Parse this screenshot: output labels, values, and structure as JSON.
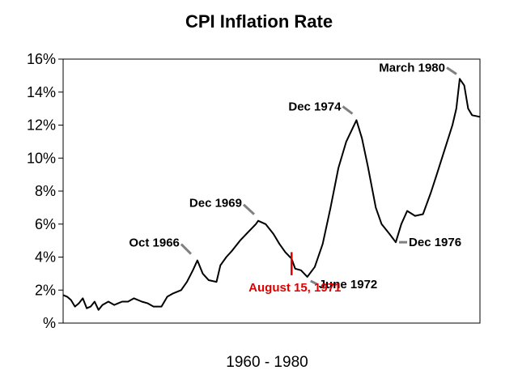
{
  "chart_data": {
    "type": "line",
    "title": "CPI Inflation Rate",
    "xlabel": "1960 - 1980",
    "ylabel": "",
    "xlim": [
      1960.0,
      1981.2
    ],
    "ylim": [
      0,
      16
    ],
    "yticks": [
      0,
      2,
      4,
      6,
      8,
      10,
      12,
      14,
      16
    ],
    "ytick_labels": [
      "%",
      "2%",
      "4%",
      "6%",
      "8%",
      "10%",
      "12%",
      "14%",
      "16%"
    ],
    "grid": false,
    "line_color": "#000000",
    "annotation_color": "#808080",
    "highlight_color": "#e00000",
    "series": [
      {
        "x": [
          1960.0,
          1960.2,
          1960.4,
          1960.6,
          1960.8,
          1961.0,
          1961.2,
          1961.4,
          1961.6,
          1961.8,
          1962.0,
          1962.3,
          1962.6,
          1963.0,
          1963.3,
          1963.6,
          1964.0,
          1964.3,
          1964.6,
          1965.0,
          1965.3,
          1965.6,
          1966.0,
          1966.3,
          1966.6,
          1966.83,
          1967.1,
          1967.4,
          1967.8,
          1968.0,
          1968.3,
          1968.6,
          1969.0,
          1969.4,
          1969.8,
          1969.92,
          1970.3,
          1970.7,
          1971.0,
          1971.3,
          1971.62,
          1971.8,
          1972.1,
          1972.42,
          1972.8,
          1973.2,
          1973.6,
          1974.0,
          1974.4,
          1974.92,
          1975.2,
          1975.5,
          1975.9,
          1976.2,
          1976.6,
          1976.92,
          1977.2,
          1977.5,
          1977.9,
          1978.3,
          1978.7,
          1979.0,
          1979.4,
          1979.8,
          1980.0,
          1980.17,
          1980.4,
          1980.6,
          1980.8,
          1981.2
        ],
        "y": [
          1.7,
          1.6,
          1.4,
          1.0,
          1.2,
          1.5,
          0.9,
          1.0,
          1.3,
          0.8,
          1.1,
          1.3,
          1.1,
          1.3,
          1.3,
          1.5,
          1.3,
          1.2,
          1.0,
          1.0,
          1.6,
          1.8,
          2.0,
          2.5,
          3.2,
          3.8,
          3.0,
          2.6,
          2.5,
          3.5,
          4.0,
          4.4,
          5.0,
          5.5,
          6.0,
          6.2,
          6.0,
          5.4,
          4.8,
          4.3,
          3.9,
          3.3,
          3.2,
          2.8,
          3.4,
          4.8,
          7.0,
          9.4,
          11.0,
          12.3,
          11.2,
          9.5,
          7.0,
          6.0,
          5.4,
          4.9,
          6.0,
          6.8,
          6.5,
          6.6,
          7.9,
          9.0,
          10.5,
          12.0,
          13.0,
          14.8,
          14.4,
          13.0,
          12.6,
          12.5
        ]
      }
    ],
    "annotations": [
      {
        "text": "Oct 1966",
        "x": 1966.83,
        "y": 3.8
      },
      {
        "text": "Dec 1969",
        "x": 1969.92,
        "y": 6.2
      },
      {
        "text": "Dec 1974",
        "x": 1974.92,
        "y": 12.3
      },
      {
        "text": "March 1980",
        "x": 1980.17,
        "y": 14.8
      },
      {
        "text": "June 1972",
        "x": 1972.42,
        "y": 2.8
      },
      {
        "text": "Dec 1976",
        "x": 1976.92,
        "y": 4.9
      }
    ],
    "event_marker": {
      "text": "August 15, 1971",
      "x": 1971.62,
      "y": [
        2.9,
        4.3
      ]
    }
  }
}
